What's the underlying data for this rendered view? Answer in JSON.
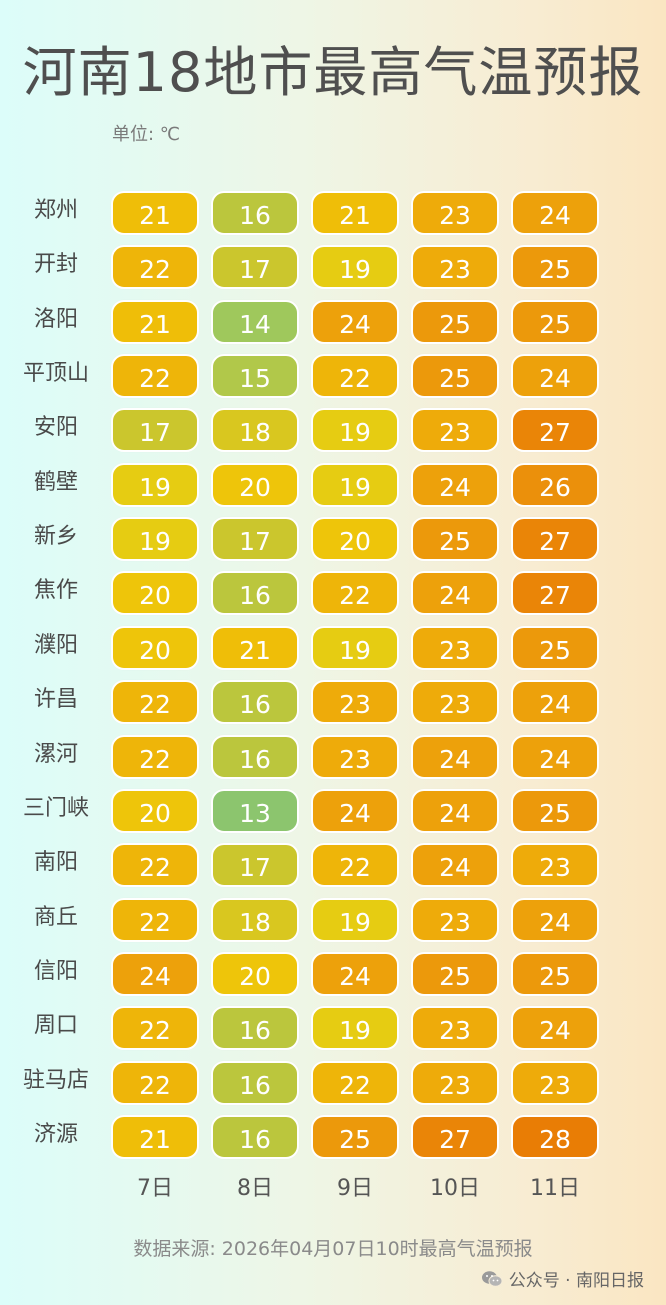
{
  "title": "河南18地市最高气温预报",
  "unit_label": "单位: ℃",
  "footer": "数据来源: 2026年04月07日10时最高气温预报",
  "watermark": {
    "text": "公众号 · 南阳日报",
    "icon": "wechat-icon"
  },
  "colors": {
    "13": "#8cc56e",
    "14": "#9fc85c",
    "15": "#b1c84a",
    "16": "#bbc63d",
    "17": "#cbc62d",
    "18": "#d9c71f",
    "19": "#e6cc12",
    "20": "#eec50a",
    "21": "#efbe08",
    "22": "#eeb509",
    "23": "#eeab0a",
    "24": "#eda10b",
    "25": "#ec990b",
    "26": "#eb900b",
    "27": "#ea8507",
    "28": "#e97d05"
  },
  "chart_data": {
    "type": "heatmap",
    "title": "河南18地市最高气温预报",
    "unit": "℃",
    "columns": [
      "7日",
      "8日",
      "9日",
      "10日",
      "11日"
    ],
    "rows": [
      {
        "city": "郑州",
        "values": [
          21,
          16,
          21,
          23,
          24
        ]
      },
      {
        "city": "开封",
        "values": [
          22,
          17,
          19,
          23,
          25
        ]
      },
      {
        "city": "洛阳",
        "values": [
          21,
          14,
          24,
          25,
          25
        ]
      },
      {
        "city": "平顶山",
        "values": [
          22,
          15,
          22,
          25,
          24
        ]
      },
      {
        "city": "安阳",
        "values": [
          17,
          18,
          19,
          23,
          27
        ]
      },
      {
        "city": "鹤壁",
        "values": [
          19,
          20,
          19,
          24,
          26
        ]
      },
      {
        "city": "新乡",
        "values": [
          19,
          17,
          20,
          25,
          27
        ]
      },
      {
        "city": "焦作",
        "values": [
          20,
          16,
          22,
          24,
          27
        ]
      },
      {
        "city": "濮阳",
        "values": [
          20,
          21,
          19,
          23,
          25
        ]
      },
      {
        "city": "许昌",
        "values": [
          22,
          16,
          23,
          23,
          24
        ]
      },
      {
        "city": "漯河",
        "values": [
          22,
          16,
          23,
          24,
          24
        ]
      },
      {
        "city": "三门峡",
        "values": [
          20,
          13,
          24,
          24,
          25
        ]
      },
      {
        "city": "南阳",
        "values": [
          22,
          17,
          22,
          24,
          23
        ]
      },
      {
        "city": "商丘",
        "values": [
          22,
          18,
          19,
          23,
          24
        ]
      },
      {
        "city": "信阳",
        "values": [
          24,
          20,
          24,
          25,
          25
        ]
      },
      {
        "city": "周口",
        "values": [
          22,
          16,
          19,
          23,
          24
        ]
      },
      {
        "city": "驻马店",
        "values": [
          22,
          16,
          22,
          23,
          23
        ]
      },
      {
        "city": "济源",
        "values": [
          21,
          16,
          25,
          27,
          28
        ]
      }
    ]
  }
}
